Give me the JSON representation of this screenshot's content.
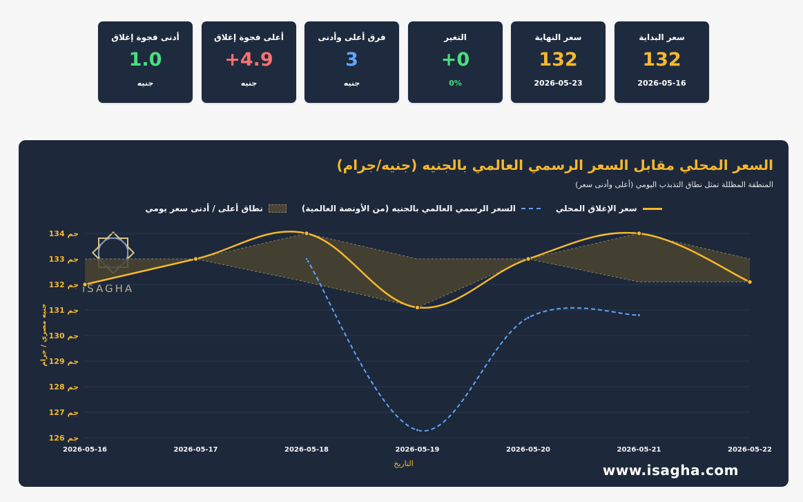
{
  "cards": [
    {
      "title": "سعر البداية",
      "value": "132",
      "sub": "2026-05-16",
      "value_color": "gold"
    },
    {
      "title": "سعر النهاية",
      "value": "132",
      "sub": "2026-05-23",
      "value_color": "gold"
    },
    {
      "title": "التغير",
      "value": "+0",
      "sub": "0%",
      "value_color": "green",
      "sub_color": "green"
    },
    {
      "title": "فرق أعلى وأدنى",
      "value": "3",
      "sub": "جنيه",
      "value_color": "blue"
    },
    {
      "title": "أعلى فجوة إغلاق",
      "value": "+4.9",
      "sub": "جنيه",
      "value_color": "red"
    },
    {
      "title": "أدنى فجوة إغلاق",
      "value": "1.0",
      "sub": "جنيه",
      "value_color": "green"
    }
  ],
  "watermark": "www.isagha.com",
  "logo_text": "iSAGHA",
  "chart_data": {
    "type": "line",
    "title": "السعر المحلي مقابل السعر الرسمي العالمي بالجنيه (جنيه/جرام)",
    "subtitle": "المنطقة المظللة تمثل نطاق التذبذب اليومي (أعلى وأدنى سعر)",
    "xlabel": "التاريخ",
    "ylabel": "جنيه مصري / جرام",
    "y_tick_suffix": " جم",
    "ylim": [
      126,
      134
    ],
    "y_ticks": [
      126,
      127,
      128,
      129,
      130,
      131,
      132,
      133,
      134
    ],
    "x": [
      "2026-05-16",
      "2026-05-17",
      "2026-05-18",
      "2026-05-19",
      "2026-05-20",
      "2026-05-21",
      "2026-05-22"
    ],
    "grid": true,
    "legend_position": "top-center",
    "series": [
      {
        "name": "سعر الإغلاق المحلي",
        "color": "#f5b82e",
        "style": "solid",
        "values": [
          132,
          133,
          134,
          131.1,
          133,
          134,
          132.1
        ]
      },
      {
        "name": "السعر الرسمي العالمي بالجنيه (من الأونصة العالمية)",
        "color": "#60a5fa",
        "style": "dashed",
        "values": [
          null,
          null,
          133,
          126.3,
          130.7,
          130.8,
          null
        ]
      }
    ],
    "band": {
      "name": "نطاق أعلى / أدنى سعر يومي",
      "color": "#4a4431",
      "high": [
        133,
        133,
        134,
        133,
        133,
        134,
        133
      ],
      "low": [
        132,
        133,
        132.1,
        131.1,
        133,
        132.1,
        132.1
      ]
    }
  }
}
